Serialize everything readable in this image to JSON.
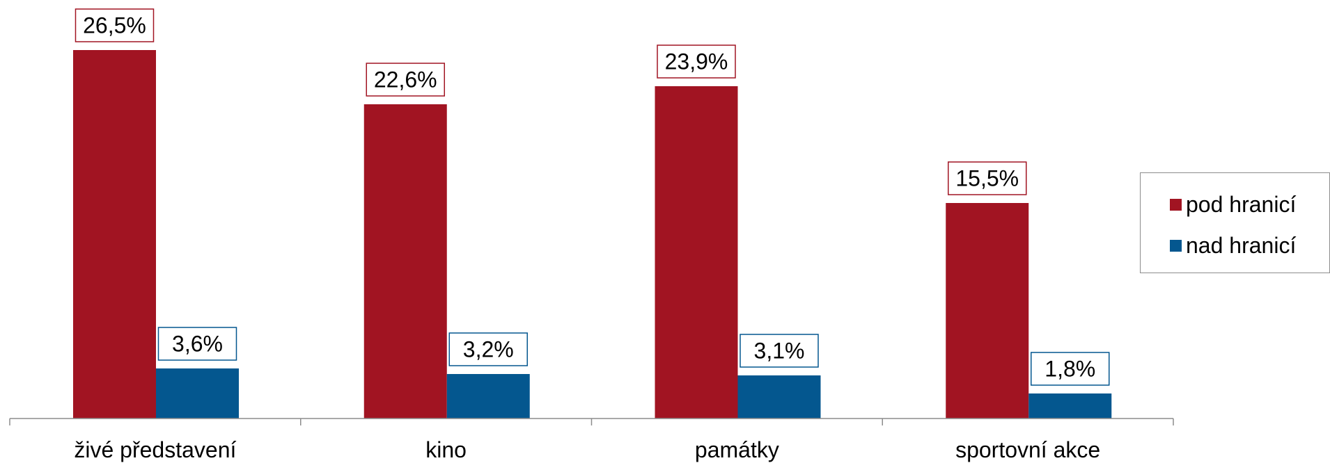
{
  "chart_data": {
    "type": "bar",
    "categories": [
      "živé představení",
      "kino",
      "památky",
      "sportovní akce"
    ],
    "series": [
      {
        "name": "pod hranicí",
        "color": "#a11422",
        "values": [
          26.5,
          22.6,
          23.9,
          15.5
        ],
        "labels": [
          "26,5%",
          "22,6%",
          "23,9%",
          "15,5%"
        ]
      },
      {
        "name": "nad hranicí",
        "color": "#04578f",
        "values": [
          3.6,
          3.2,
          3.1,
          1.8
        ],
        "labels": [
          "3,6%",
          "3,2%",
          "3,1%",
          "1,8%"
        ]
      }
    ],
    "ylim": [
      0,
      30
    ],
    "legend": "right",
    "grid": false
  }
}
